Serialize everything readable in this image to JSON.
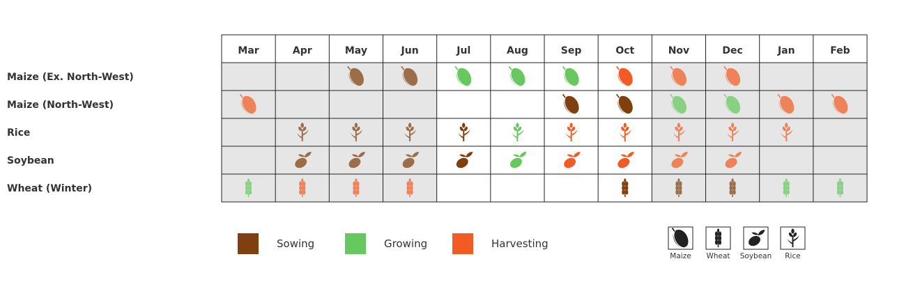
{
  "chart_data": {
    "type": "table",
    "months": [
      "Mar",
      "Apr",
      "May",
      "Jun",
      "Jul",
      "Aug",
      "Sep",
      "Oct",
      "Nov",
      "Dec",
      "Jan",
      "Feb"
    ],
    "rows": [
      {
        "label": "Maize (Ex. North-West)",
        "crop": "maize",
        "cells": [
          {
            "stage": "",
            "faded": true
          },
          {
            "stage": "",
            "faded": true
          },
          {
            "stage": "sowing",
            "faded": true
          },
          {
            "stage": "sowing",
            "faded": true
          },
          {
            "stage": "growing",
            "faded": false
          },
          {
            "stage": "growing",
            "faded": false
          },
          {
            "stage": "growing",
            "faded": false
          },
          {
            "stage": "harvesting",
            "faded": false
          },
          {
            "stage": "harvesting",
            "faded": true
          },
          {
            "stage": "harvesting",
            "faded": true
          },
          {
            "stage": "",
            "faded": true
          },
          {
            "stage": "",
            "faded": true
          }
        ]
      },
      {
        "label": "Maize (North-West)",
        "crop": "maize",
        "cells": [
          {
            "stage": "harvesting",
            "faded": true
          },
          {
            "stage": "",
            "faded": true
          },
          {
            "stage": "",
            "faded": true
          },
          {
            "stage": "",
            "faded": true
          },
          {
            "stage": "",
            "faded": false
          },
          {
            "stage": "",
            "faded": false
          },
          {
            "stage": "sowing",
            "faded": false
          },
          {
            "stage": "sowing",
            "faded": false
          },
          {
            "stage": "growing",
            "faded": true
          },
          {
            "stage": "growing",
            "faded": true
          },
          {
            "stage": "harvesting",
            "faded": true
          },
          {
            "stage": "harvesting",
            "faded": true
          }
        ]
      },
      {
        "label": "Rice",
        "crop": "rice",
        "cells": [
          {
            "stage": "",
            "faded": true
          },
          {
            "stage": "sowing",
            "faded": true
          },
          {
            "stage": "sowing",
            "faded": true
          },
          {
            "stage": "sowing",
            "faded": true
          },
          {
            "stage": "sowing",
            "faded": false
          },
          {
            "stage": "growing",
            "faded": false
          },
          {
            "stage": "harvesting",
            "faded": false
          },
          {
            "stage": "harvesting",
            "faded": false
          },
          {
            "stage": "harvesting",
            "faded": true
          },
          {
            "stage": "harvesting",
            "faded": true
          },
          {
            "stage": "harvesting",
            "faded": true
          },
          {
            "stage": "",
            "faded": true
          }
        ]
      },
      {
        "label": "Soybean",
        "crop": "soybean",
        "cells": [
          {
            "stage": "",
            "faded": true
          },
          {
            "stage": "sowing",
            "faded": true
          },
          {
            "stage": "sowing",
            "faded": true
          },
          {
            "stage": "sowing",
            "faded": true
          },
          {
            "stage": "sowing",
            "faded": false
          },
          {
            "stage": "growing",
            "faded": false
          },
          {
            "stage": "harvesting",
            "faded": false
          },
          {
            "stage": "harvesting",
            "faded": false
          },
          {
            "stage": "harvesting",
            "faded": true
          },
          {
            "stage": "harvesting",
            "faded": true
          },
          {
            "stage": "",
            "faded": true
          },
          {
            "stage": "",
            "faded": true
          }
        ]
      },
      {
        "label": "Wheat (Winter)",
        "crop": "wheat",
        "cells": [
          {
            "stage": "growing",
            "faded": true
          },
          {
            "stage": "harvesting",
            "faded": true
          },
          {
            "stage": "harvesting",
            "faded": true
          },
          {
            "stage": "harvesting",
            "faded": true
          },
          {
            "stage": "",
            "faded": false
          },
          {
            "stage": "",
            "faded": false
          },
          {
            "stage": "",
            "faded": false
          },
          {
            "stage": "sowing",
            "faded": false
          },
          {
            "stage": "sowing",
            "faded": true
          },
          {
            "stage": "sowing",
            "faded": true
          },
          {
            "stage": "growing",
            "faded": true
          },
          {
            "stage": "growing",
            "faded": true
          }
        ]
      }
    ],
    "stages": [
      {
        "key": "sowing",
        "label": "Sowing",
        "color": "#7f3f0e"
      },
      {
        "key": "growing",
        "label": "Growing",
        "color": "#66c85e"
      },
      {
        "key": "harvesting",
        "label": "Harvesting",
        "color": "#f25c24"
      }
    ],
    "crop_key": [
      {
        "key": "maize",
        "label": "Maize",
        "icon": "maize-icon"
      },
      {
        "key": "wheat",
        "label": "Wheat",
        "icon": "wheat-icon"
      },
      {
        "key": "soybean",
        "label": "Soybean",
        "icon": "soybean-icon"
      },
      {
        "key": "rice",
        "label": "Rice",
        "icon": "rice-icon"
      }
    ]
  },
  "colors": {
    "faded_cell": "#e6e6e6",
    "grid_line": "#222222",
    "key_icon": "#222222"
  }
}
